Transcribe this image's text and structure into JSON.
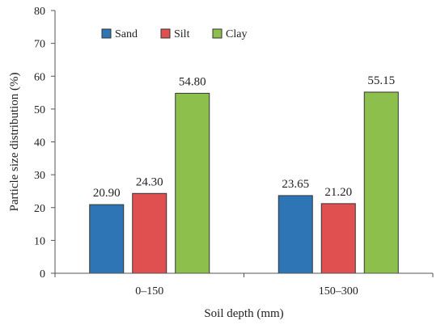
{
  "chart_data": {
    "type": "bar",
    "categories": [
      "0–150",
      "150–300"
    ],
    "series": [
      {
        "name": "Sand",
        "values": [
          20.9,
          23.65
        ],
        "color": "#2E75B6"
      },
      {
        "name": "Silt",
        "values": [
          24.3,
          21.2
        ],
        "color": "#E05050"
      },
      {
        "name": "Clay",
        "values": [
          54.8,
          55.15
        ],
        "color": "#8DBF4C"
      }
    ],
    "data_labels": [
      [
        "20.90",
        "23.65"
      ],
      [
        "24.30",
        "21.20"
      ],
      [
        "54.80",
        "55.15"
      ]
    ],
    "xlabel": "Soil depth (mm)",
    "ylabel": "Particle size distribution (%)",
    "ylim": [
      0,
      80
    ],
    "yticks": [
      "0",
      "10",
      "20",
      "30",
      "40",
      "50",
      "60",
      "70",
      "80"
    ],
    "grid": false,
    "legend_position": "top-left"
  }
}
